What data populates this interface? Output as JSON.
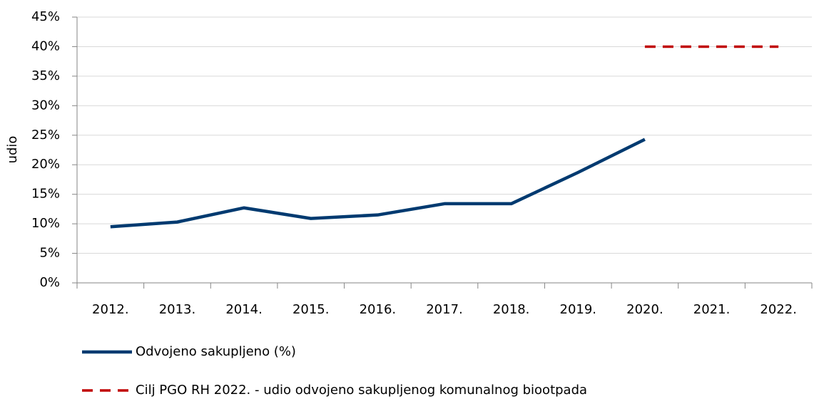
{
  "chart_data": {
    "type": "line",
    "y_label": "udio",
    "categories": [
      "2012.",
      "2013.",
      "2014.",
      "2015.",
      "2016.",
      "2017.",
      "2018.",
      "2019.",
      "2020.",
      "2021.",
      "2022."
    ],
    "series": [
      {
        "name": "Odvojeno sakupljeno (%)",
        "color": "#003a70",
        "dash": false,
        "values": [
          9.5,
          10.3,
          12.7,
          10.9,
          11.5,
          13.4,
          13.4,
          18.7,
          24.3,
          null,
          null
        ]
      },
      {
        "name": "Cilj PGO RH 2022. - udio odvojeno sakupljenog komunalnog biootpada",
        "color": "#c00000",
        "dash": true,
        "values": [
          null,
          null,
          null,
          null,
          null,
          null,
          null,
          null,
          40,
          40,
          40
        ]
      }
    ],
    "ylim": [
      0,
      45
    ],
    "yticks": [
      {
        "value": 0,
        "label": "0%"
      },
      {
        "value": 5,
        "label": "5%"
      },
      {
        "value": 10,
        "label": "10%"
      },
      {
        "value": 15,
        "label": "15%"
      },
      {
        "value": 20,
        "label": "20%"
      },
      {
        "value": 25,
        "label": "25%"
      },
      {
        "value": 30,
        "label": "30%"
      },
      {
        "value": 35,
        "label": "35%"
      },
      {
        "value": 40,
        "label": "40%"
      },
      {
        "value": 45,
        "label": "45%"
      }
    ],
    "grid": true,
    "legend": "bottom"
  }
}
